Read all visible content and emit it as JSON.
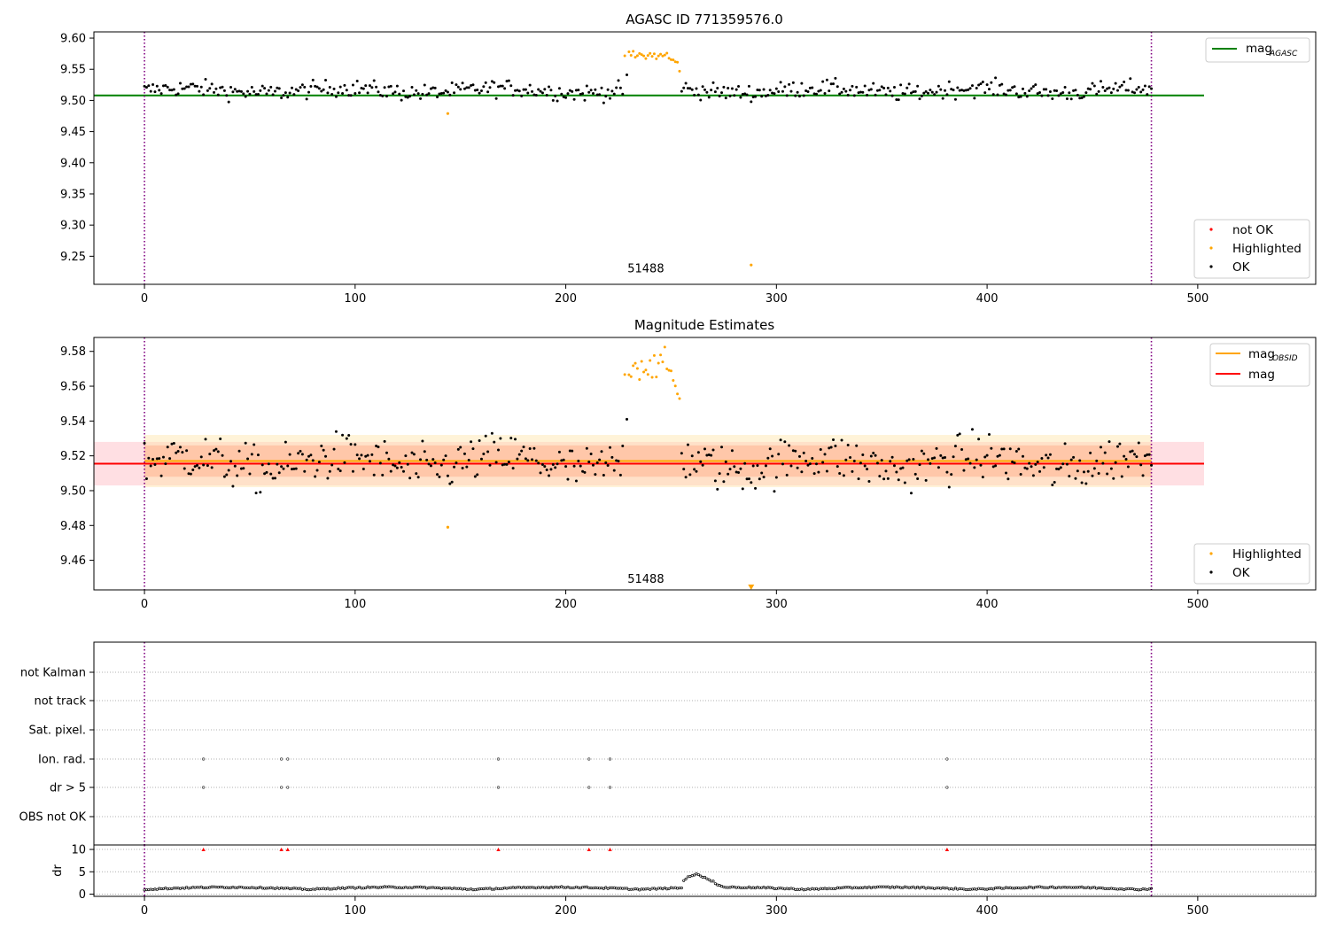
{
  "chart_data": [
    {
      "panel": "agasc",
      "type": "scatter",
      "title": "AGASC ID 771359576.0",
      "xlim": [
        -24,
        556
      ],
      "ylim": [
        9.205,
        9.61
      ],
      "xticks": [
        "0",
        "100",
        "200",
        "300",
        "400",
        "500"
      ],
      "yticks": [
        "9.60",
        "9.55",
        "9.50",
        "9.45",
        "9.40",
        "9.35",
        "9.30",
        "9.25"
      ],
      "hlines": [
        {
          "y": 9.508,
          "x0": -24,
          "x1": 503,
          "color": "#008000",
          "label": "mag",
          "subscript": "AGASC"
        }
      ],
      "vlines": [
        {
          "x": 0,
          "color": "#800080",
          "style": "dotted"
        },
        {
          "x": 478,
          "color": "#800080",
          "style": "dotted"
        }
      ],
      "annotation": {
        "text": "51488",
        "x": 238,
        "y": 9.224
      },
      "legend_points": [
        {
          "label": "not OK",
          "color": "#ff0000"
        },
        {
          "label": "Highlighted",
          "color": "#ffa500"
        },
        {
          "label": "OK",
          "color": "#000000"
        }
      ],
      "highlighted_points": [
        [
          144,
          9.479
        ],
        [
          288,
          9.236
        ]
      ],
      "highlight_range": [
        228,
        254
      ],
      "highlight_level": 9.572,
      "ok_baseline": 9.516,
      "ok_noise": 0.012
    },
    {
      "panel": "estimates",
      "type": "scatter",
      "title": "Magnitude Estimates",
      "xlim": [
        -24,
        556
      ],
      "ylim": [
        9.443,
        9.588
      ],
      "xticks": [
        "0",
        "100",
        "200",
        "300",
        "400",
        "500"
      ],
      "yticks": [
        "9.58",
        "9.56",
        "9.54",
        "9.52",
        "9.50",
        "9.48",
        "9.46"
      ],
      "bands": [
        {
          "y0": 9.503,
          "y1": 9.528,
          "x0": -24,
          "x1": 503,
          "color": "#ffc0c8",
          "opacity": 0.5
        },
        {
          "y0": 9.502,
          "y1": 9.532,
          "x0": 0,
          "x1": 478,
          "color": "#ffe4a8",
          "opacity": 0.45
        },
        {
          "y0": 9.508,
          "y1": 9.526,
          "x0": 0,
          "x1": 478,
          "color": "#ffa07a",
          "opacity": 0.4
        }
      ],
      "hlines": [
        {
          "y": 9.517,
          "x0": 0,
          "x1": 478,
          "color": "#ffa500",
          "label": "mag",
          "subscript": "OBSID"
        },
        {
          "y": 9.5155,
          "x0": -24,
          "x1": 503,
          "color": "#ff0000",
          "label": "mag",
          "subscript": ""
        }
      ],
      "vlines": [
        {
          "x": 0,
          "color": "#800080",
          "style": "dotted"
        },
        {
          "x": 478,
          "color": "#800080",
          "style": "dotted"
        }
      ],
      "annotation": {
        "text": "51488",
        "x": 238,
        "y": 9.447
      },
      "legend_points": [
        {
          "label": "Highlighted",
          "color": "#ffa500"
        },
        {
          "label": "OK",
          "color": "#000000"
        }
      ],
      "highlighted_points": [
        [
          144,
          9.479
        ]
      ],
      "highlight_marker": [
        288,
        9.4445
      ],
      "highlight_range": [
        228,
        254
      ],
      "highlight_level": 9.572,
      "ok_baseline": 9.516,
      "ok_noise": 0.012
    },
    {
      "panel": "flags",
      "type": "scatter",
      "xlim": [
        -24,
        556
      ],
      "categories": [
        "not Kalman",
        "not track",
        "Sat. pixel.",
        "Ion. rad.",
        "dr > 5",
        "OBS not OK"
      ],
      "flagged": {
        "Ion. rad.": [
          28,
          65,
          68,
          168,
          211,
          221,
          381
        ],
        "dr > 5": [
          28,
          65,
          68,
          168,
          211,
          221,
          381
        ]
      },
      "vlines": [
        {
          "x": 0,
          "color": "#800080",
          "style": "dotted"
        },
        {
          "x": 478,
          "color": "#800080",
          "style": "dotted"
        }
      ]
    },
    {
      "panel": "dr",
      "type": "scatter",
      "ylabel": "dr",
      "xlim": [
        -24,
        556
      ],
      "ylim": [
        -0.5,
        11
      ],
      "xticks": [
        "0",
        "100",
        "200",
        "300",
        "400",
        "500"
      ],
      "yticks": [
        "10",
        "5",
        "0"
      ],
      "clipped_points_x": [
        28,
        65,
        68,
        168,
        211,
        221,
        381
      ],
      "clipped_value": 10,
      "vlines": [
        {
          "x": 0,
          "color": "#800080",
          "style": "dotted"
        },
        {
          "x": 478,
          "color": "#800080",
          "style": "dotted"
        }
      ]
    }
  ]
}
